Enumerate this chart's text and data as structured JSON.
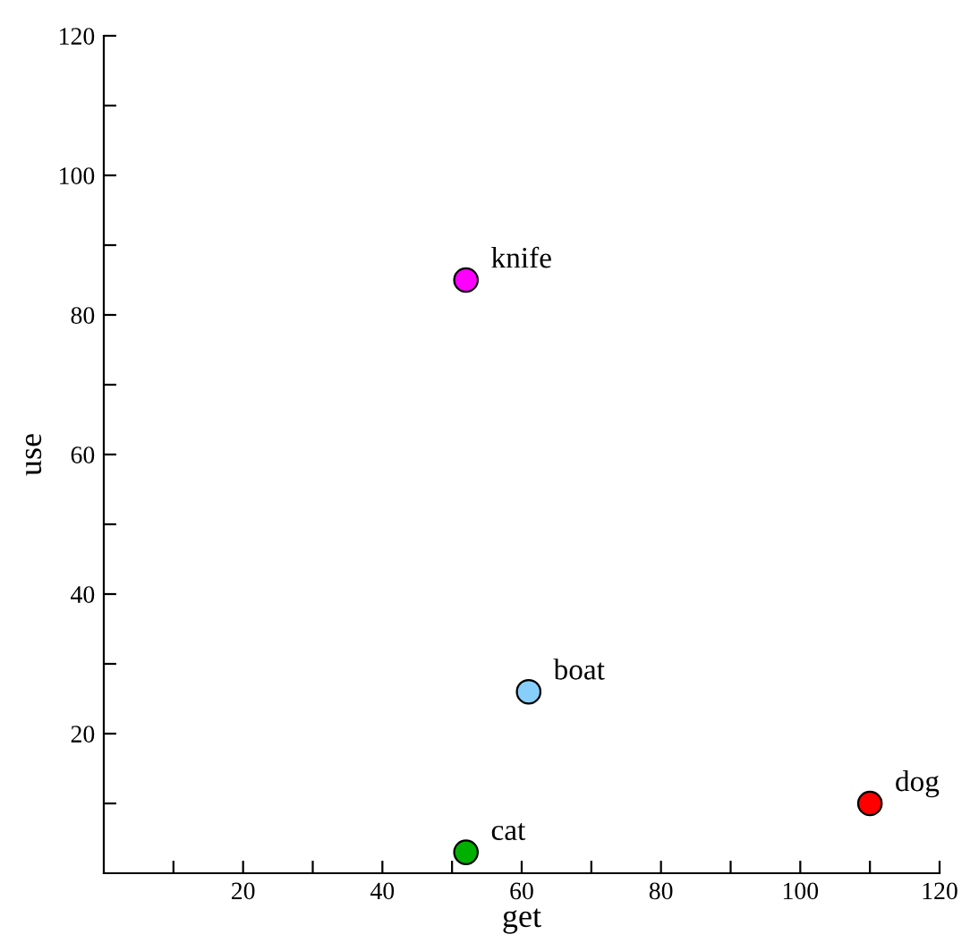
{
  "chart_data": {
    "type": "scatter",
    "xlabel": "get",
    "ylabel": "use",
    "series": [
      {
        "name": "knife",
        "color": "#ff00ff",
        "x": [
          52
        ],
        "values": [
          85
        ]
      },
      {
        "name": "boat",
        "color": "#87cefa",
        "x": [
          61
        ],
        "values": [
          26
        ]
      },
      {
        "name": "cat",
        "color": "#00b000",
        "x": [
          52
        ],
        "values": [
          3
        ]
      },
      {
        "name": "dog",
        "color": "#ff0000",
        "x": [
          110
        ],
        "values": [
          10
        ]
      }
    ],
    "xlim": [
      0,
      120
    ],
    "ylim": [
      0,
      120
    ],
    "xticks": [
      {
        "value": 10,
        "label": null
      },
      20,
      {
        "value": 30,
        "label": null
      },
      40,
      {
        "value": 50,
        "label": null
      },
      60,
      {
        "value": 70,
        "label": null
      },
      80,
      {
        "value": 90,
        "label": null
      },
      100,
      {
        "value": 110,
        "label": null
      },
      120
    ],
    "yticks": [
      {
        "value": 10,
        "label": null
      },
      20,
      {
        "value": 30,
        "label": null
      },
      40,
      {
        "value": 50,
        "label": null
      },
      60,
      {
        "value": 70,
        "label": null
      },
      80,
      {
        "value": 90,
        "label": null
      },
      100,
      {
        "value": 110,
        "label": null
      },
      120
    ],
    "grid": false,
    "legend": false
  }
}
